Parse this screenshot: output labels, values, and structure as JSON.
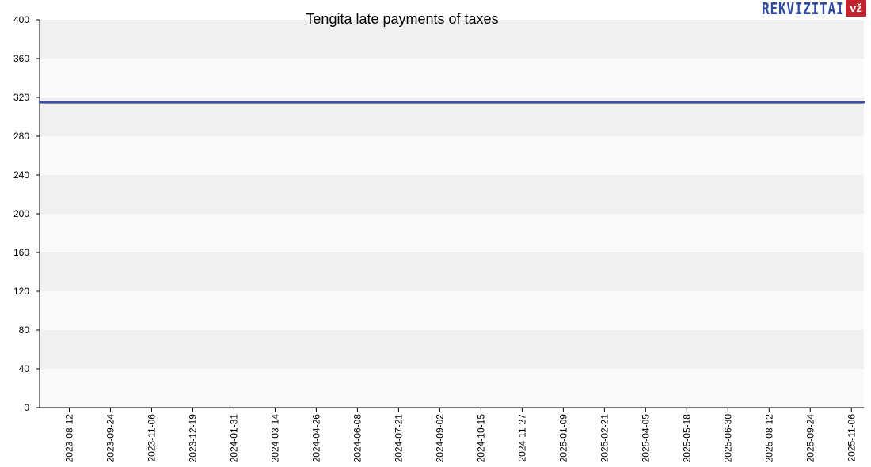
{
  "chart_data": {
    "type": "line",
    "title": "Tengita late payments of taxes",
    "xlabel": "",
    "ylabel": "",
    "ylim": [
      0,
      400
    ],
    "yticks": [
      0,
      40,
      80,
      120,
      160,
      200,
      240,
      280,
      320,
      360,
      400
    ],
    "x_tick_labels": [
      "2023-08-12",
      "2023-09-24",
      "2023-11-06",
      "2023-12-19",
      "2024-01-31",
      "2024-03-14",
      "2024-04-26",
      "2024-06-08",
      "2024-07-21",
      "2024-09-02",
      "2024-10-15",
      "2024-11-27",
      "2025-01-09",
      "2025-02-21",
      "2025-04-05",
      "2025-05-18",
      "2025-06-30",
      "2025-08-12",
      "2025-09-24",
      "2025-11-06"
    ],
    "xlim": [
      "2023-07-12",
      "2025-11-19"
    ],
    "grid": "alternating horizontal bands",
    "series": [
      {
        "color": "#3a4ea0",
        "points": [
          {
            "x": "2023-07-12",
            "y": 315
          },
          {
            "x": "2025-11-19",
            "y": 315
          }
        ]
      }
    ]
  },
  "logo": {
    "word": "REKVIZITAI",
    "badge": "vž",
    "word_color": "#2f4aa0",
    "badge_color": "#c3232c"
  }
}
